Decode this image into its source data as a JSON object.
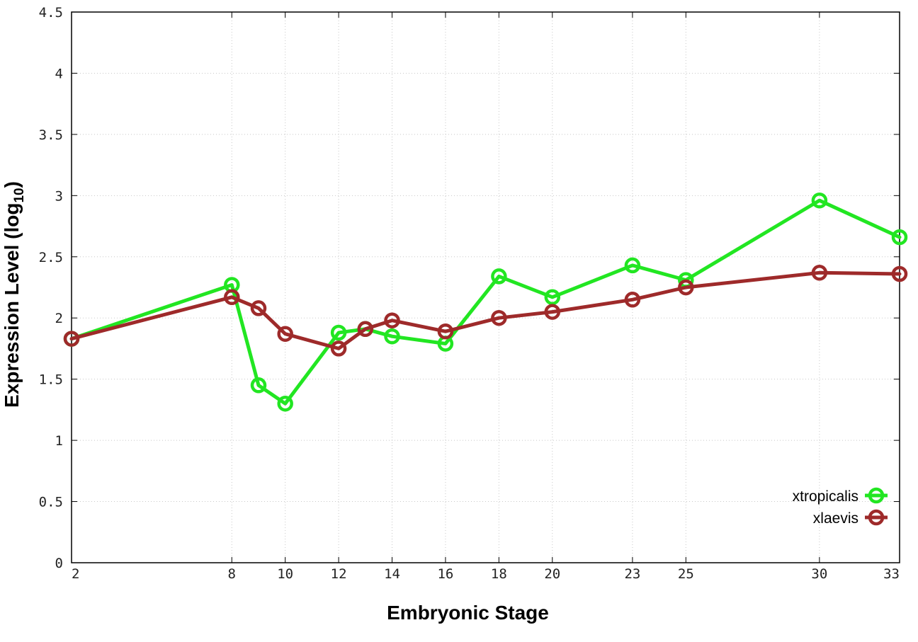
{
  "chart_data": {
    "type": "line",
    "xlabel": "Embryonic Stage",
    "ylabel": "Expression Level (log",
    "ylabel_subscript": "10",
    "ylabel_close": ")",
    "x_ticks": [
      2,
      8,
      10,
      12,
      14,
      16,
      18,
      20,
      23,
      25,
      30,
      33
    ],
    "x_tick_labels": [
      "2",
      "8",
      "10",
      "12",
      "14",
      "16",
      "18",
      "20",
      "23",
      "25",
      "30",
      "33"
    ],
    "y_ticks": [
      0,
      0.5,
      1,
      1.5,
      2,
      2.5,
      3,
      3.5,
      4,
      4.5
    ],
    "y_tick_labels": [
      "0",
      "0.5",
      "1",
      "1.5",
      "2",
      "2.5",
      "3",
      "3.5",
      "4",
      "4.5"
    ],
    "ylim": [
      0,
      4.5
    ],
    "grid": true,
    "legend_position": "bottom-right",
    "series": [
      {
        "name": "xtropicalis",
        "color": "#22e622",
        "x": [
          2,
          8,
          9,
          10,
          12,
          13,
          14,
          16,
          18,
          20,
          23,
          25,
          30,
          33
        ],
        "values": [
          1.83,
          2.27,
          1.45,
          1.3,
          1.88,
          1.91,
          1.85,
          1.79,
          2.34,
          2.17,
          2.43,
          2.31,
          2.96,
          2.66
        ]
      },
      {
        "name": "xlaevis",
        "color": "#9e2a2a",
        "x": [
          2,
          8,
          9,
          10,
          12,
          13,
          14,
          16,
          18,
          20,
          23,
          25,
          30,
          33
        ],
        "values": [
          1.83,
          2.17,
          2.08,
          1.87,
          1.75,
          1.91,
          1.98,
          1.89,
          2.0,
          2.05,
          2.15,
          2.25,
          2.37,
          2.36
        ]
      }
    ]
  }
}
